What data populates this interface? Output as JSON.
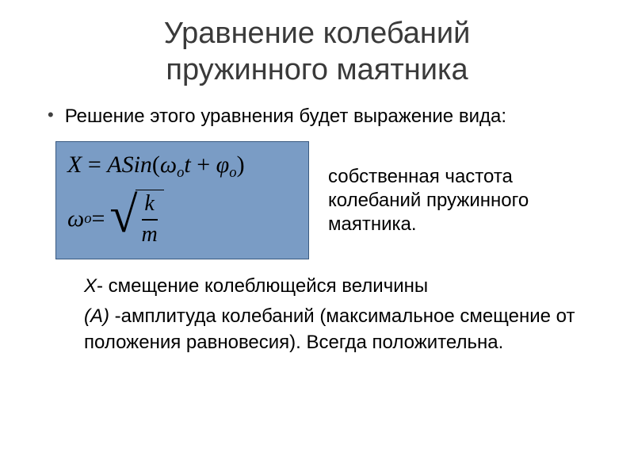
{
  "title_line1": "Уравнение колебаний",
  "title_line2": "пружинного маятника",
  "intro": "Решение этого уравнения будет выражение вида:",
  "formula": {
    "eq1_lhs": "X",
    "eq1_eq": " = ",
    "eq1_A": "A",
    "eq1_Sin": "Sin",
    "eq1_open": "(",
    "eq1_omega": "ω",
    "eq1_sub_o1": "o",
    "eq1_t": "t",
    "eq1_plus": " + ",
    "eq1_phi": "φ",
    "eq1_sub_o2": "o",
    "eq1_close": ")",
    "eq2_omega": "ω",
    "eq2_sub_o": "o",
    "eq2_eq": " = ",
    "frac_k": "k",
    "frac_m": "m",
    "box_bg": "#7a9cc5",
    "box_border": "#3a5a80"
  },
  "side_text": "собственная частота колебаний    пружинного маятника.",
  "def_x_sym": "X",
  "def_x_text": "- смещение колеблющейся величины",
  "def_a_sym": "(A)",
  "def_a_text": "  -амплитуда колебаний (максимальное смещение от положения  равновесия).  Всегда положительна."
}
